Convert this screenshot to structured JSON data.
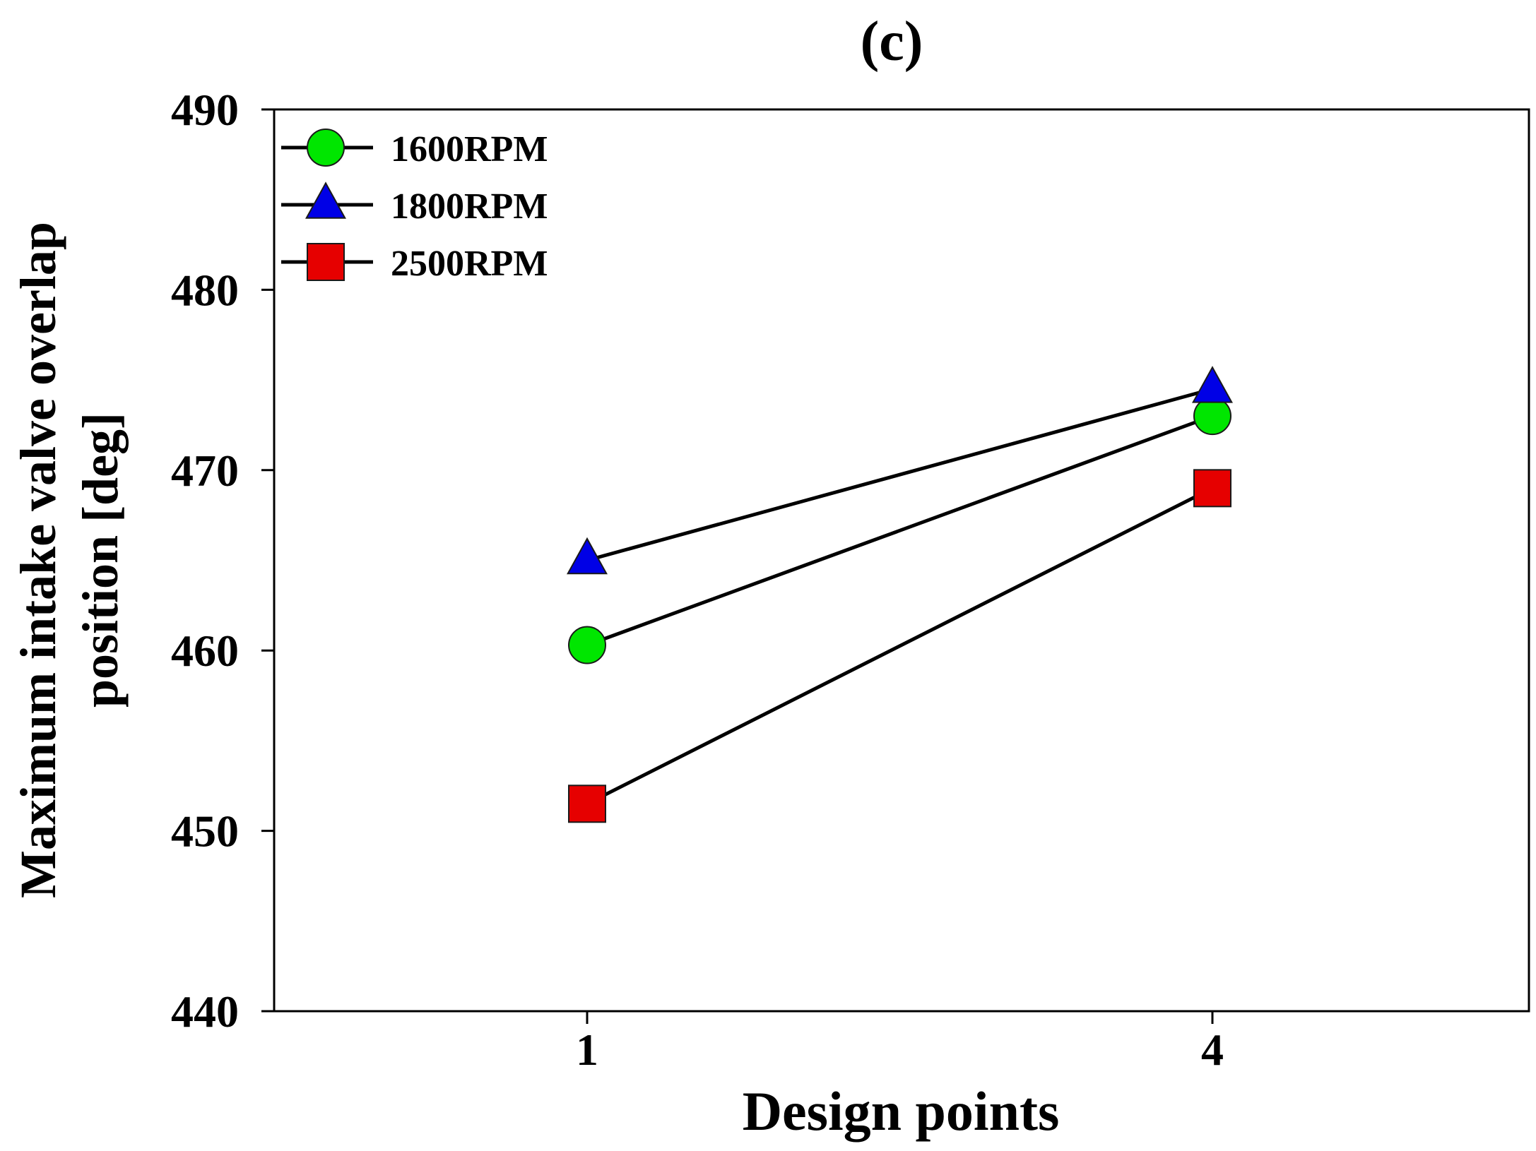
{
  "chart_data": {
    "type": "line",
    "title": "(c)",
    "xlabel": "Design points",
    "ylabel_lines": [
      "Maximum intake valve overlap",
      "position [deg]"
    ],
    "categories": [
      "1",
      "4"
    ],
    "yticks": [
      440,
      450,
      460,
      470,
      480,
      490
    ],
    "ylim": [
      440,
      490
    ],
    "grid": false,
    "legend_position": "top-left",
    "series": [
      {
        "name": "1600RPM",
        "marker": "circle",
        "color": "#00e600",
        "values": [
          460.3,
          473.0
        ]
      },
      {
        "name": "1800RPM",
        "marker": "triangle",
        "color": "#0000e6",
        "values": [
          465.0,
          474.5
        ]
      },
      {
        "name": "2500RPM",
        "marker": "square",
        "color": "#e60000",
        "values": [
          451.5,
          469.0
        ]
      }
    ]
  }
}
